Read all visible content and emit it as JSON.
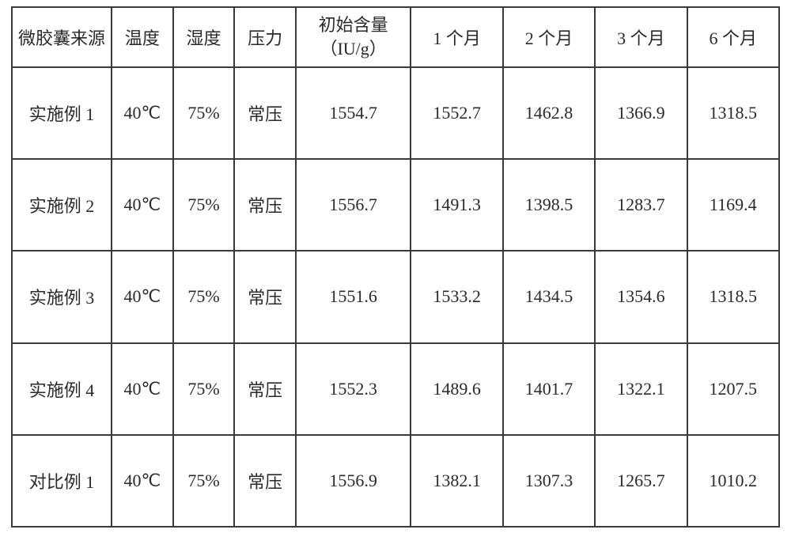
{
  "table": {
    "columns": [
      {
        "label": "微胶囊来源",
        "width_pct": 13
      },
      {
        "label": "温度",
        "width_pct": 8
      },
      {
        "label": "湿度",
        "width_pct": 8
      },
      {
        "label": "压力",
        "width_pct": 8
      },
      {
        "label_line1": "初始含量",
        "label_line2": "（IU/g）",
        "width_pct": 15
      },
      {
        "label": "1 个月",
        "width_pct": 12
      },
      {
        "label": "2 个月",
        "width_pct": 12
      },
      {
        "label": "3 个月",
        "width_pct": 12
      },
      {
        "label": "6 个月",
        "width_pct": 12
      }
    ],
    "rows": [
      [
        "实施例 1",
        "40℃",
        "75%",
        "常压",
        "1554.7",
        "1552.7",
        "1462.8",
        "1366.9",
        "1318.5"
      ],
      [
        "实施例 2",
        "40℃",
        "75%",
        "常压",
        "1556.7",
        "1491.3",
        "1398.5",
        "1283.7",
        "1169.4"
      ],
      [
        "实施例 3",
        "40℃",
        "75%",
        "常压",
        "1551.6",
        "1533.2",
        "1434.5",
        "1354.6",
        "1318.5"
      ],
      [
        "实施例 4",
        "40℃",
        "75%",
        "常压",
        "1552.3",
        "1489.6",
        "1401.7",
        "1322.1",
        "1207.5"
      ],
      [
        "对比例 1",
        "40℃",
        "75%",
        "常压",
        "1556.9",
        "1382.1",
        "1307.3",
        "1265.7",
        "1010.2"
      ]
    ],
    "border_color": "#3a3a3a",
    "text_color": "#2a2a2a",
    "font_size_pt": 16,
    "background_color": "#ffffff"
  }
}
